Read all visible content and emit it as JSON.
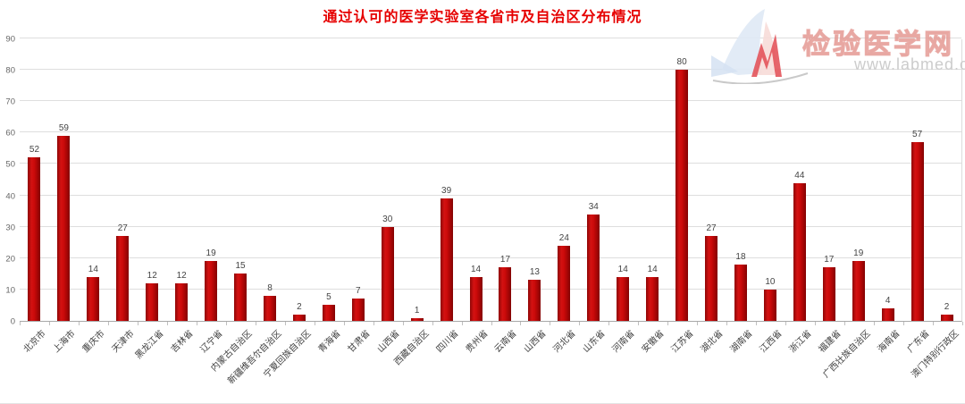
{
  "title": "通过认可的医学实验室各省市及自治区分布情况",
  "watermark": {
    "site_name": "检验医学网",
    "site_url": "www.labmed.cn"
  },
  "chart_data": {
    "type": "bar",
    "title": "通过认可的医学实验室各省市及自治区分布情况",
    "categories": [
      "北京市",
      "上海市",
      "重庆市",
      "天津市",
      "黑龙江省",
      "吉林省",
      "辽宁省",
      "内蒙古自治区",
      "新疆维吾尔自治区",
      "宁夏回族自治区",
      "青海省",
      "甘肃省",
      "山西省",
      "西藏自治区",
      "四川省",
      "贵州省",
      "云南省",
      "山西省",
      "河北省",
      "山东省",
      "河南省",
      "安徽省",
      "江苏省",
      "湖北省",
      "湖南省",
      "江西省",
      "浙江省",
      "福建省",
      "广西壮族自治区",
      "海南省",
      "广东省",
      "澳门特别行政区"
    ],
    "values": [
      52,
      59,
      14,
      27,
      12,
      12,
      19,
      15,
      8,
      2,
      5,
      7,
      30,
      1,
      39,
      14,
      17,
      13,
      24,
      34,
      14,
      14,
      80,
      27,
      18,
      10,
      44,
      17,
      19,
      4,
      57,
      2
    ],
    "xlabel": "",
    "ylabel": "",
    "ylim": [
      0,
      90
    ],
    "y_ticks": [
      0,
      10,
      20,
      30,
      40,
      50,
      60,
      70,
      80,
      90
    ],
    "grid": true,
    "legend": "none",
    "bar_color": "#c00000",
    "value_label_color": "#444444",
    "title_color": "#e60000"
  }
}
